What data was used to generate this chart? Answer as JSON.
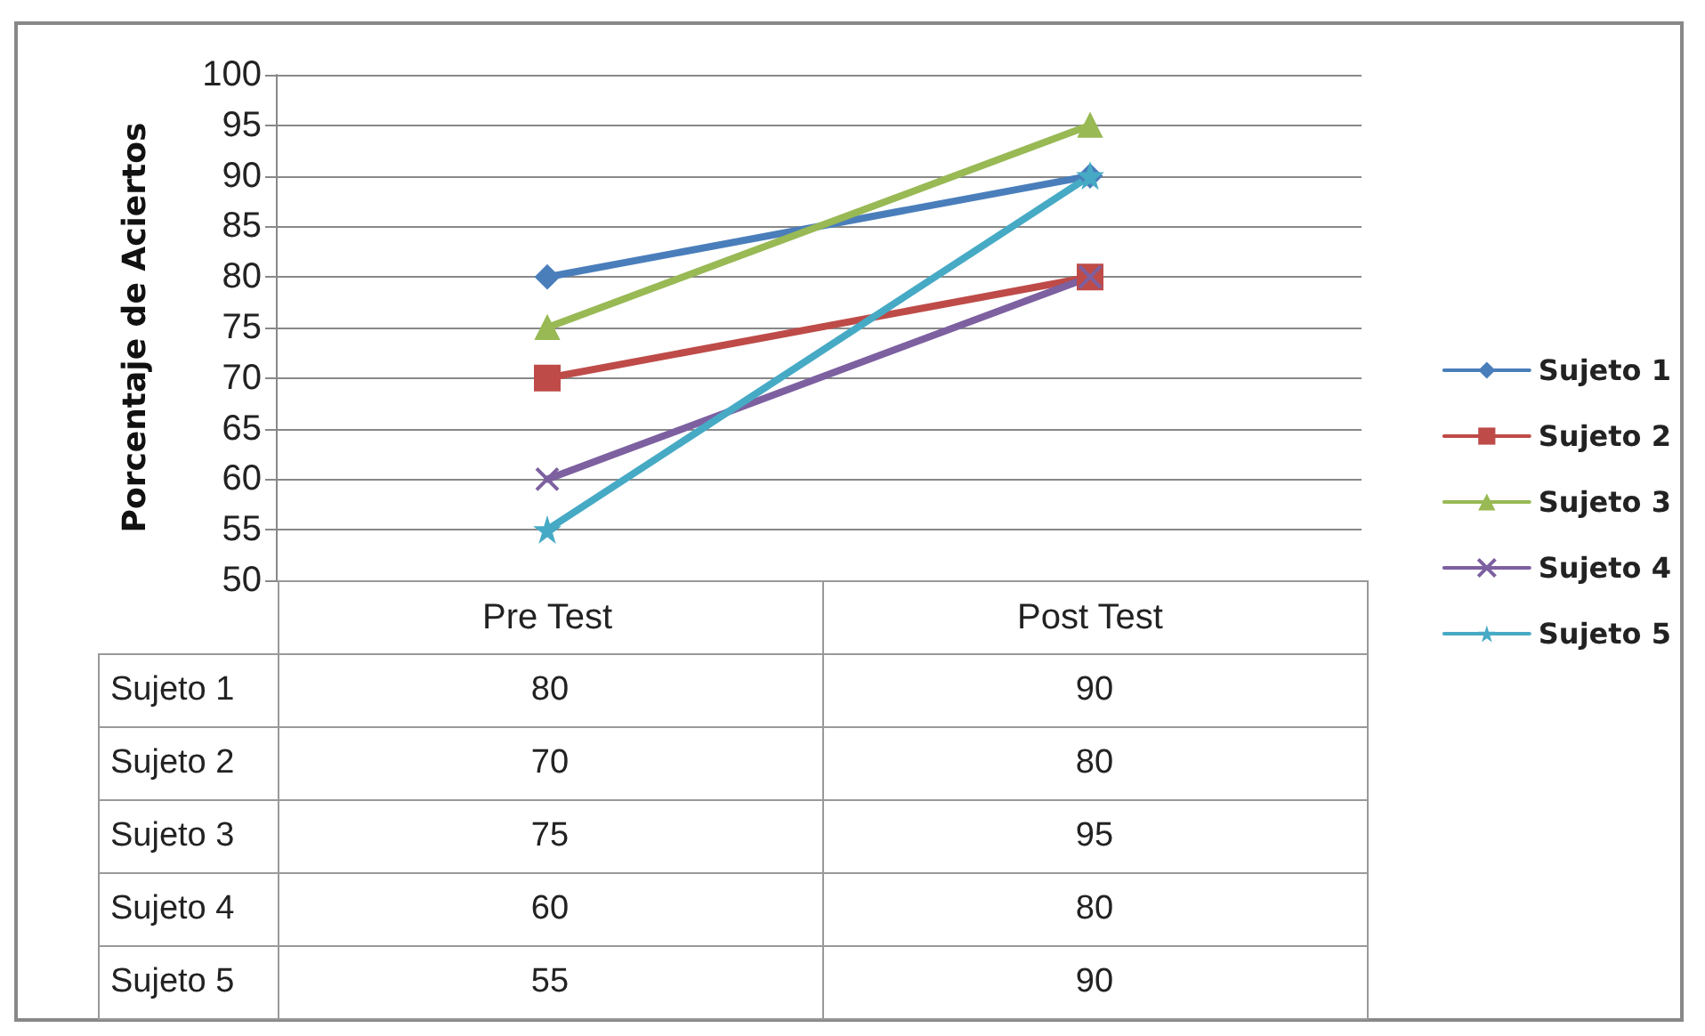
{
  "chart_data": {
    "type": "line",
    "ylabel": "Porcentaje de Aciertos",
    "categories": [
      "Pre Test",
      "Post Test"
    ],
    "series": [
      {
        "name": "Sujeto 1",
        "color": "#4a7ebb",
        "marker": "diamond",
        "values": [
          80,
          90
        ]
      },
      {
        "name": "Sujeto 2",
        "color": "#be4b48",
        "marker": "square",
        "values": [
          70,
          80
        ]
      },
      {
        "name": "Sujeto 3",
        "color": "#98b954",
        "marker": "triangle",
        "values": [
          75,
          95
        ]
      },
      {
        "name": "Sujeto 4",
        "color": "#7d60a0",
        "marker": "cross",
        "values": [
          60,
          80
        ]
      },
      {
        "name": "Sujeto 5",
        "color": "#46aac5",
        "marker": "star",
        "values": [
          55,
          90
        ]
      }
    ],
    "ylim": [
      50,
      100
    ],
    "yticks": [
      50,
      55,
      60,
      65,
      70,
      75,
      80,
      85,
      90,
      95,
      100
    ],
    "grid": "y",
    "legend": "right",
    "data_labels": true
  }
}
